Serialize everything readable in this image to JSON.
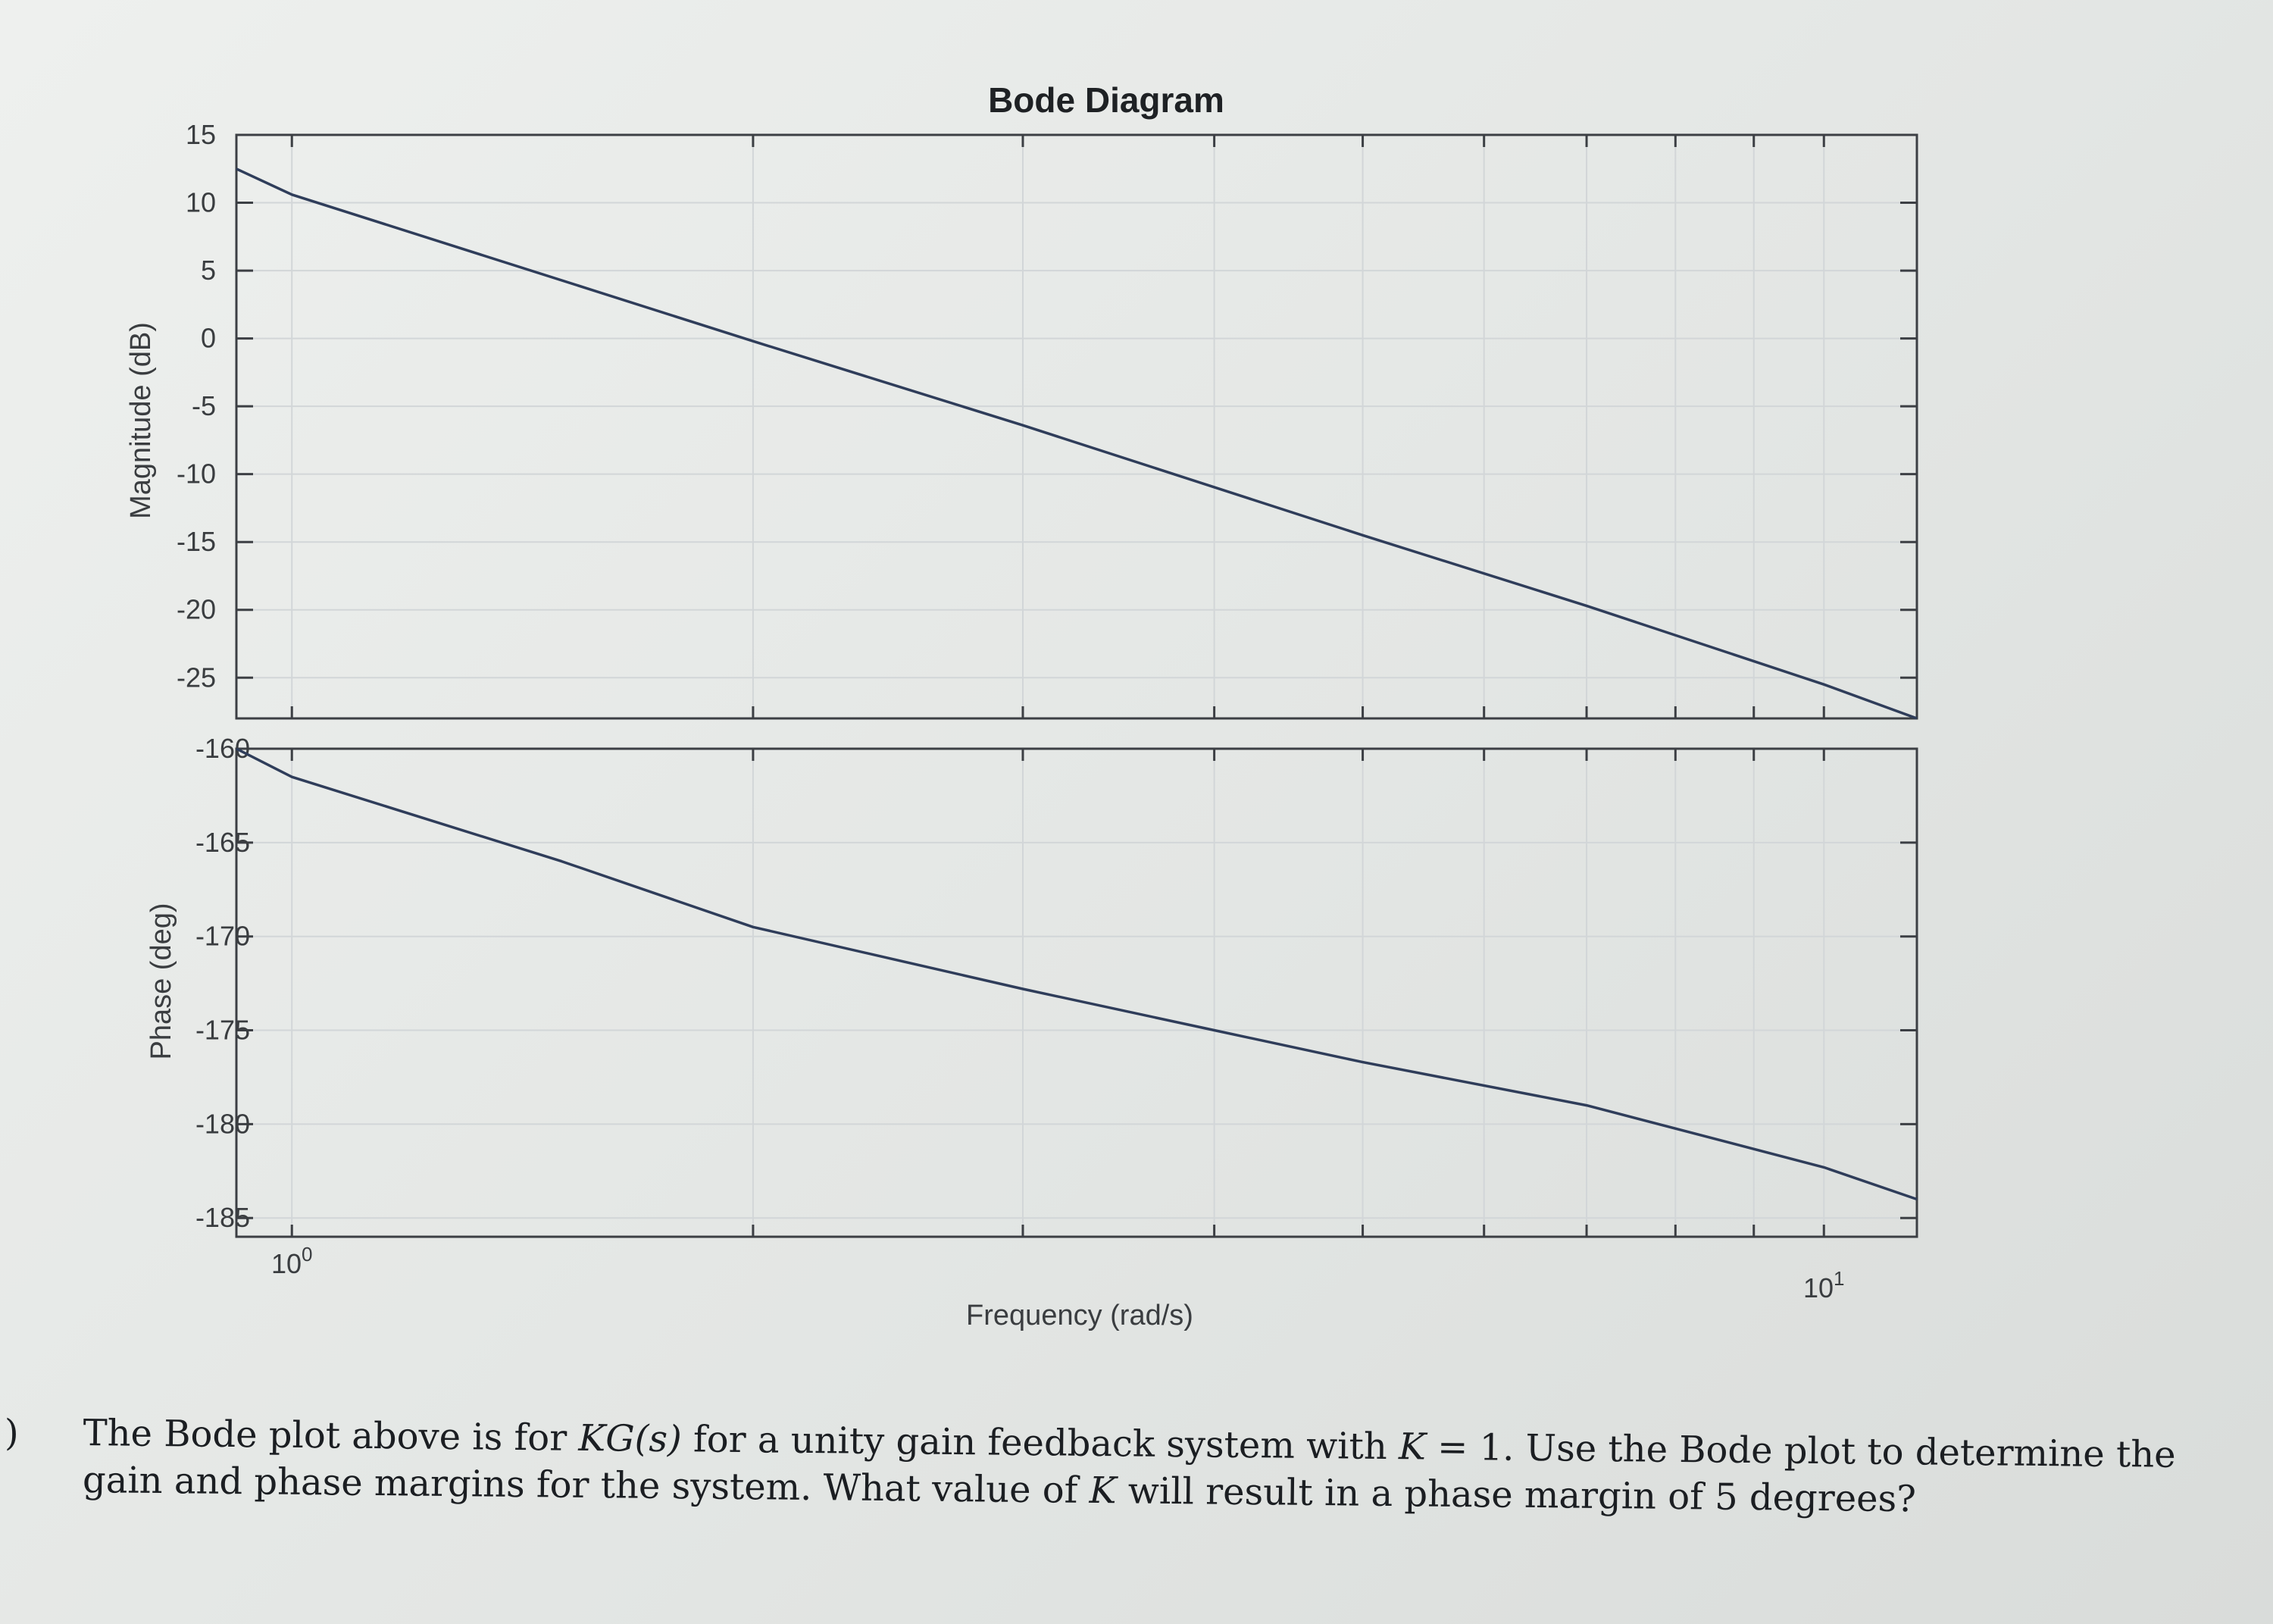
{
  "chart_data": {
    "type": "line",
    "title": "Bode Diagram",
    "xlabel": "Frequency  (rad/s)",
    "x_scale": "log",
    "x_tick_labels": [
      {
        "base": "10",
        "exp": "0",
        "value": 1
      },
      {
        "base": "10",
        "exp": "1",
        "value": 10
      }
    ],
    "panels": [
      {
        "name": "magnitude",
        "ylabel": "Magnitude (dB)",
        "ylim": [
          -28,
          15
        ],
        "y_ticks": [
          15,
          10,
          5,
          0,
          -5,
          -10,
          -15,
          -20,
          -25
        ],
        "x": [
          0.92,
          1.0,
          2.0,
          3.0,
          5.0,
          7.0,
          10.0,
          11.5
        ],
        "y": [
          12.5,
          10.6,
          -0.2,
          -6.4,
          -14.5,
          -19.7,
          -25.5,
          -28.0
        ]
      },
      {
        "name": "phase",
        "ylabel": "Phase (deg)",
        "ylim": [
          -186,
          -160
        ],
        "y_ticks": [
          -160,
          -165,
          -170,
          -175,
          -180,
          -185
        ],
        "x": [
          0.92,
          1.0,
          1.5,
          2.0,
          3.0,
          4.0,
          5.0,
          7.0,
          10.0,
          11.5
        ],
        "y": [
          -160.0,
          -161.5,
          -166.0,
          -169.5,
          -172.8,
          -175.0,
          -176.7,
          -179.0,
          -182.3,
          -184.0
        ]
      }
    ],
    "grid": true,
    "line_color": "#2f3d5a"
  },
  "problem": {
    "marker": ")",
    "line1_a": "The Bode plot above is for ",
    "line1_kg": "KG(s)",
    "line1_b": " for a unity gain feedback system with ",
    "line1_k": "K",
    "line1_c": " = 1.  Use the Bode plot to determine the",
    "line2_a": "gain and phase margins for the system.  What value of ",
    "line2_k": "K",
    "line2_b": " will result in a phase margin of 5 degrees?"
  }
}
